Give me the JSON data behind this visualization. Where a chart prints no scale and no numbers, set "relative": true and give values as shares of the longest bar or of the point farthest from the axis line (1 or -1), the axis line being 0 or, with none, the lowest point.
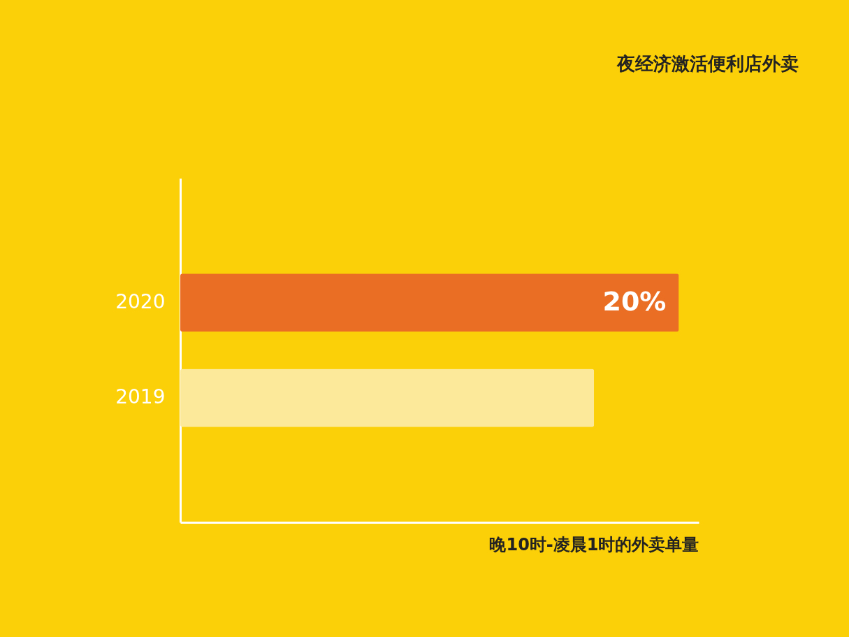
{
  "chart_data": {
    "type": "bar",
    "orientation": "horizontal",
    "relative": true,
    "title": "夜经济激活便利店外卖",
    "xlabel": "晚10时-凌晨1时的外卖单量",
    "categories": [
      "2020",
      "2019"
    ],
    "values": [
      1,
      0.83
    ],
    "colors": [
      "#ea6e23",
      "#fce99a"
    ],
    "annotations": [
      {
        "text": "20%",
        "x": 1,
        "y": "2020"
      }
    ],
    "grid": false
  }
}
